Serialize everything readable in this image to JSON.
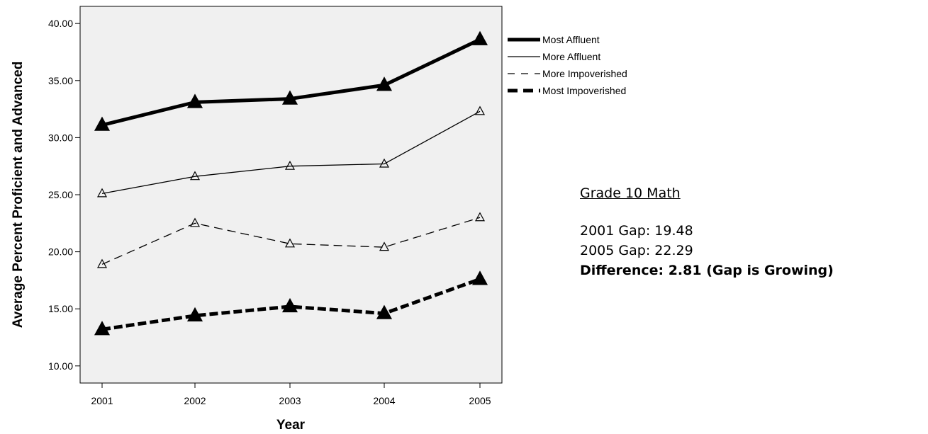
{
  "chart_data": {
    "type": "line",
    "xlabel": "Year",
    "ylabel": "Average Percent Proficient and Advanced",
    "x": [
      "2001",
      "2002",
      "2003",
      "2004",
      "2005"
    ],
    "ylim": [
      8.5,
      41.5
    ],
    "yticks": [
      "10.00",
      "15.00",
      "20.00",
      "25.00",
      "30.00",
      "35.00",
      "40.00"
    ],
    "grid": false,
    "legend_position": "right",
    "series": [
      {
        "name": "Most Affluent",
        "values": [
          31.1,
          33.1,
          33.4,
          34.6,
          38.6
        ],
        "style": "solid-thick",
        "marker": "filled-triangle"
      },
      {
        "name": "More Affluent",
        "values": [
          25.1,
          26.6,
          27.5,
          27.7,
          32.3
        ],
        "style": "solid-thin",
        "marker": "open-triangle"
      },
      {
        "name": "More Impoverished",
        "values": [
          18.9,
          22.5,
          20.7,
          20.4,
          23.0
        ],
        "style": "dashed-thin",
        "marker": "open-triangle"
      },
      {
        "name": "Most Impoverished",
        "values": [
          13.2,
          14.4,
          15.2,
          14.6,
          17.6
        ],
        "style": "dashed-thick",
        "marker": "filled-triangle"
      }
    ],
    "colors": {
      "plot_background": "#f0f0f0",
      "line": "#000000"
    }
  },
  "summary": {
    "heading": "Grade 10 Math",
    "gap_2001": "2001 Gap:  19.48",
    "gap_2005": "2005 Gap:  22.29",
    "difference": "Difference:  2.81  (Gap is Growing)"
  }
}
